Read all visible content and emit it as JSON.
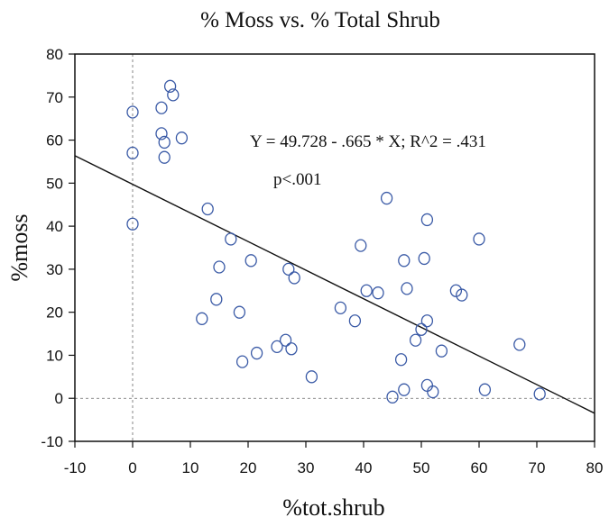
{
  "chart_data": {
    "type": "scatter",
    "title": "% Moss vs. % Total Shrub",
    "xlabel": "%tot.shrub",
    "ylabel": "%moss",
    "xlim": [
      -10,
      80
    ],
    "ylim": [
      -10,
      80
    ],
    "xticks": [
      "-10",
      "0",
      "10",
      "20",
      "30",
      "40",
      "50",
      "60",
      "70",
      "80"
    ],
    "yticks": [
      "-10",
      "0",
      "10",
      "20",
      "30",
      "40",
      "50",
      "60",
      "70",
      "80"
    ],
    "grid": false,
    "reference_lines": {
      "x": 0,
      "y": 0,
      "style": "dashed"
    },
    "regression": {
      "intercept": 49.728,
      "slope": -0.665
    },
    "annotations": [
      "Y = 49.728 - .665 * X; R^2 = .431",
      "p<.001"
    ],
    "marker_color": "#3a5aa6",
    "points": [
      {
        "x": 0,
        "y": 66.5
      },
      {
        "x": 0,
        "y": 57
      },
      {
        "x": 0,
        "y": 40.5
      },
      {
        "x": 5,
        "y": 67.5
      },
      {
        "x": 5,
        "y": 61.5
      },
      {
        "x": 5.5,
        "y": 59.5
      },
      {
        "x": 5.5,
        "y": 56
      },
      {
        "x": 6.5,
        "y": 72.5
      },
      {
        "x": 7,
        "y": 70.5
      },
      {
        "x": 8.5,
        "y": 60.5
      },
      {
        "x": 13,
        "y": 44
      },
      {
        "x": 12,
        "y": 18.5
      },
      {
        "x": 14.5,
        "y": 23
      },
      {
        "x": 15,
        "y": 30.5
      },
      {
        "x": 17,
        "y": 37
      },
      {
        "x": 18.5,
        "y": 20
      },
      {
        "x": 19,
        "y": 8.5
      },
      {
        "x": 20.5,
        "y": 32
      },
      {
        "x": 21.5,
        "y": 10.5
      },
      {
        "x": 25,
        "y": 12
      },
      {
        "x": 26.5,
        "y": 13.5
      },
      {
        "x": 27,
        "y": 30
      },
      {
        "x": 27.5,
        "y": 11.5
      },
      {
        "x": 28,
        "y": 28
      },
      {
        "x": 31,
        "y": 5
      },
      {
        "x": 36,
        "y": 21
      },
      {
        "x": 38.5,
        "y": 18
      },
      {
        "x": 39.5,
        "y": 35.5
      },
      {
        "x": 40.5,
        "y": 25
      },
      {
        "x": 42.5,
        "y": 24.5
      },
      {
        "x": 44,
        "y": 46.5
      },
      {
        "x": 45,
        "y": 0.3
      },
      {
        "x": 46.5,
        "y": 9
      },
      {
        "x": 47,
        "y": 32
      },
      {
        "x": 47,
        "y": 2
      },
      {
        "x": 47.5,
        "y": 25.5
      },
      {
        "x": 49,
        "y": 13.5
      },
      {
        "x": 50,
        "y": 16
      },
      {
        "x": 50.5,
        "y": 32.5
      },
      {
        "x": 51,
        "y": 41.5
      },
      {
        "x": 51,
        "y": 18
      },
      {
        "x": 51,
        "y": 3
      },
      {
        "x": 52,
        "y": 1.5
      },
      {
        "x": 53.5,
        "y": 11
      },
      {
        "x": 56,
        "y": 25
      },
      {
        "x": 57,
        "y": 24
      },
      {
        "x": 60,
        "y": 37
      },
      {
        "x": 61,
        "y": 2
      },
      {
        "x": 67,
        "y": 12.5
      },
      {
        "x": 70.5,
        "y": 1
      }
    ]
  }
}
